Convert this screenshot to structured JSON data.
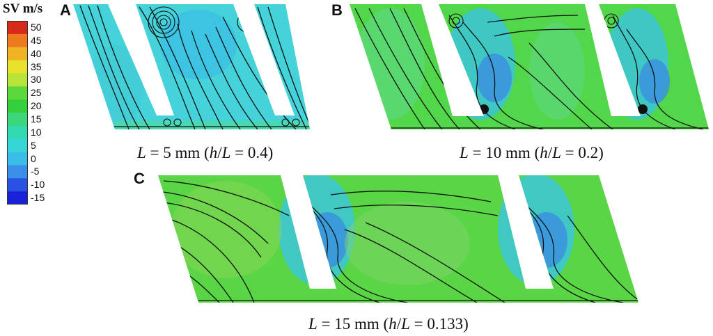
{
  "legend": {
    "title": "SV m/s",
    "ticks": [
      "50",
      "45",
      "40",
      "35",
      "30",
      "25",
      "20",
      "15",
      "10",
      "5",
      "0",
      "-5",
      "-10",
      "-15"
    ],
    "colors": [
      "#d62a1b",
      "#ee7a1f",
      "#f0b323",
      "#e8e22a",
      "#b8e33a",
      "#5bd83a",
      "#35cf3c",
      "#3bd77a",
      "#33d9b0",
      "#36d5d6",
      "#3bbde9",
      "#3a8fe8",
      "#2a52e2",
      "#1a22d8"
    ]
  },
  "panels": [
    {
      "letter": "A",
      "caption": {
        "L": "L",
        "eq": " = 5 mm (",
        "h": "h",
        "slash": "/",
        "L2": "L",
        "val": " = 0.4)"
      }
    },
    {
      "letter": "B",
      "caption": {
        "L": "L",
        "eq": " = 10 mm (",
        "h": "h",
        "slash": "/",
        "L2": "L",
        "val": " = 0.2)"
      }
    },
    {
      "letter": "C",
      "caption": {
        "L": "L",
        "eq": " = 15 mm (",
        "h": "h",
        "slash": "/",
        "L2": "L",
        "val": " = 0.133)"
      }
    }
  ],
  "field_colors": {
    "cyan": "#45d6d0",
    "green": "#4fd64a",
    "blue": "#3a8fe0",
    "streamline": "#111111"
  }
}
